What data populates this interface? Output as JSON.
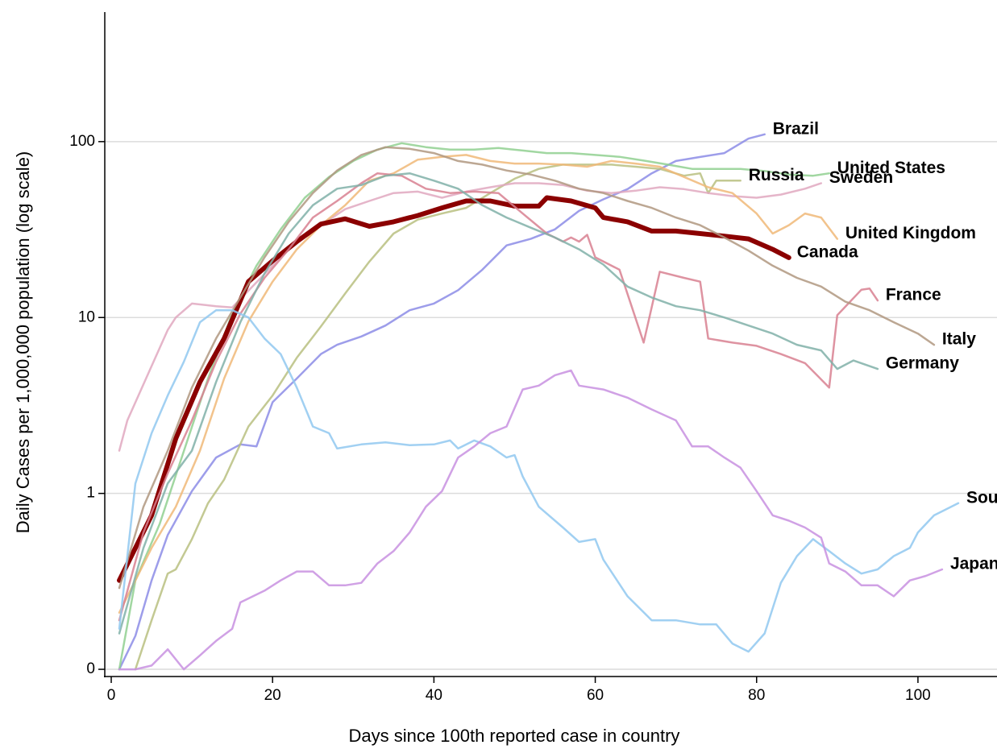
{
  "chart_data": {
    "type": "line",
    "x_label": "Days since 100th reported case in country",
    "y_label": "Daily Cases per 1,000,000 population (log scale)",
    "log_y": true,
    "grid": true,
    "xlim": [
      -0.8,
      109.8
    ],
    "xticks": [
      0,
      20,
      40,
      60,
      80,
      100
    ],
    "ylim": [
      0.091,
      545
    ],
    "yticks": [
      {
        "value": 0.1,
        "label": "0"
      },
      1,
      10,
      100
    ],
    "series": [
      {
        "name": "Brazil",
        "color": "#8c8ce6",
        "line_width": 2.5,
        "x": [
          1,
          3,
          5,
          7,
          10,
          13,
          16,
          18,
          20,
          23,
          26,
          28,
          31,
          34,
          37,
          40,
          43,
          46,
          49,
          52,
          55,
          58,
          61,
          64,
          67,
          70,
          73,
          76,
          79,
          81
        ],
        "values": [
          0.1,
          0.155,
          0.32,
          0.58,
          1.03,
          1.6,
          1.9,
          1.85,
          3.3,
          4.5,
          6.2,
          7.0,
          7.8,
          9,
          11,
          12,
          14.3,
          18.7,
          25.7,
          28,
          31.7,
          40.4,
          47,
          53.7,
          66,
          77.6,
          81.8,
          86,
          104,
          110
        ]
      },
      {
        "name": "United States",
        "color": "#90d090",
        "line_width": 2.5,
        "x": [
          1,
          3,
          6,
          9,
          12,
          15,
          18,
          21,
          24,
          27,
          30,
          33,
          36,
          39,
          42,
          45,
          48,
          51,
          54,
          57,
          60,
          63,
          66,
          69,
          72,
          75,
          78,
          81,
          84,
          87,
          89
        ],
        "values": [
          0.1,
          0.32,
          0.67,
          1.74,
          4.5,
          10.5,
          19.7,
          31.7,
          48,
          63,
          77.6,
          90,
          98,
          93,
          90,
          90,
          92,
          89,
          86,
          86,
          84,
          82,
          78,
          74,
          70,
          70,
          70,
          68,
          65,
          64,
          66
        ]
      },
      {
        "name": "Russia",
        "color": "#b8c080",
        "line_width": 2.5,
        "x": [
          3,
          5,
          7,
          8,
          10,
          12,
          14,
          17,
          20,
          23,
          26,
          29,
          32,
          35,
          38,
          41,
          44,
          47,
          50,
          53,
          56,
          59,
          62,
          65,
          68,
          71,
          73,
          74,
          75,
          78
        ],
        "values": [
          0.1,
          0.19,
          0.35,
          0.37,
          0.55,
          0.88,
          1.2,
          2.4,
          3.6,
          5.9,
          8.9,
          13.7,
          20.8,
          30,
          36,
          39,
          42,
          51,
          61.5,
          70,
          74,
          74,
          74,
          72,
          70,
          64,
          66,
          51,
          60,
          60
        ]
      },
      {
        "name": "Sweden",
        "color": "#e0a8c0",
        "line_width": 2.5,
        "x": [
          1,
          2,
          5,
          7,
          8,
          10,
          13,
          15,
          20,
          23,
          26,
          29,
          32,
          35,
          38,
          41,
          44,
          47,
          50,
          53,
          56,
          59,
          62,
          65,
          68,
          71,
          74,
          77,
          80,
          83,
          86,
          88
        ],
        "values": [
          1.75,
          2.6,
          5.3,
          8.5,
          10,
          12,
          11.6,
          11.4,
          19.7,
          27,
          33.5,
          41.3,
          46,
          51,
          52,
          48,
          52,
          55,
          58,
          58,
          56.6,
          52.6,
          51,
          52.6,
          55,
          53.7,
          51,
          49,
          48,
          50,
          54,
          58
        ]
      },
      {
        "name": "United Kingdom",
        "color": "#f0b878",
        "line_width": 2.5,
        "x": [
          1,
          3,
          5,
          8,
          11,
          14,
          17,
          20,
          23,
          26,
          29,
          32,
          35,
          38,
          41,
          44,
          47,
          50,
          53,
          56,
          59,
          62,
          65,
          68,
          71,
          74,
          77,
          80,
          82,
          84,
          86,
          88,
          90
        ],
        "values": [
          0.21,
          0.32,
          0.49,
          0.84,
          1.75,
          4.5,
          9.5,
          16,
          24.4,
          33.5,
          43.5,
          60,
          66,
          79,
          82,
          84,
          77.6,
          75,
          75,
          74,
          72,
          77.6,
          75,
          72,
          63,
          55,
          51,
          39,
          30,
          33.5,
          39,
          37,
          28
        ]
      },
      {
        "name": "Canada",
        "color": "#8b0000",
        "line_width": 6,
        "x": [
          1,
          5,
          8,
          11,
          14,
          17,
          20,
          23,
          26,
          29,
          32,
          35,
          38,
          41,
          44,
          47,
          50,
          53,
          54,
          57,
          60,
          61,
          64,
          67,
          70,
          73,
          76,
          79,
          82,
          84
        ],
        "values": [
          0.32,
          0.75,
          2.05,
          4.3,
          7.6,
          16,
          21,
          27,
          34,
          36.4,
          33,
          35,
          38,
          42,
          46,
          46,
          43,
          43,
          48,
          46,
          42,
          37,
          35,
          31,
          31,
          30,
          29,
          28,
          24.4,
          21.9
        ]
      },
      {
        "name": "France",
        "color": "#d88090",
        "line_width": 2.5,
        "x": [
          1,
          4,
          7,
          10,
          13,
          16,
          19,
          22,
          25,
          28,
          31,
          33,
          36,
          39,
          42,
          45,
          48,
          51,
          54,
          56,
          57,
          58,
          59,
          60,
          63,
          66,
          68,
          71,
          73,
          74,
          77,
          80,
          83,
          86,
          89,
          90,
          93,
          94,
          95
        ],
        "values": [
          0.19,
          0.6,
          1.3,
          2.6,
          5.6,
          10.5,
          16.8,
          24.4,
          37,
          46,
          58,
          66,
          64,
          54,
          51,
          52,
          51,
          39,
          30,
          27,
          28.5,
          27,
          29.5,
          22,
          18.7,
          7.2,
          18.2,
          16.8,
          16,
          7.6,
          7.2,
          6.9,
          6.2,
          5.5,
          4.0,
          10.3,
          14.4,
          14.6,
          12.5
        ]
      },
      {
        "name": "Italy",
        "color": "#b09880",
        "line_width": 2.5,
        "x": [
          1,
          4,
          7,
          10,
          13,
          16,
          19,
          22,
          25,
          28,
          31,
          34,
          37,
          40,
          43,
          46,
          49,
          52,
          55,
          58,
          61,
          64,
          67,
          70,
          73,
          76,
          79,
          82,
          85,
          88,
          91,
          94,
          97,
          100,
          102
        ],
        "values": [
          0.29,
          0.84,
          1.75,
          4.0,
          7.6,
          13,
          22,
          35,
          51,
          68.5,
          84,
          93,
          91,
          86,
          77.6,
          74,
          68.5,
          65,
          60,
          54,
          51,
          46,
          42,
          37,
          33.5,
          28.5,
          24,
          19.7,
          16.8,
          15,
          12.3,
          11,
          9.4,
          8.1,
          7
        ]
      },
      {
        "name": "Germany",
        "color": "#80b0a8",
        "line_width": 2.5,
        "x": [
          1,
          4,
          7,
          10,
          13,
          16,
          19,
          22,
          25,
          28,
          31,
          34,
          37,
          40,
          43,
          46,
          49,
          52,
          55,
          58,
          61,
          64,
          67,
          70,
          73,
          76,
          79,
          82,
          85,
          88,
          90,
          92,
          95
        ],
        "values": [
          0.16,
          0.49,
          1.14,
          1.75,
          4.3,
          9.4,
          17.8,
          30,
          43.5,
          54,
          56.6,
          64,
          66,
          60,
          54,
          43.5,
          37,
          32.4,
          28.5,
          24.4,
          20,
          15,
          13,
          11.6,
          11,
          10,
          9,
          8.1,
          7,
          6.5,
          5.1,
          5.7,
          5.1
        ]
      },
      {
        "name": "South Korea",
        "color": "#90c8f0",
        "line_width": 2.5,
        "x": [
          1,
          3,
          5,
          7,
          9,
          11,
          13,
          15,
          17,
          19,
          21,
          23,
          25,
          27,
          28,
          31,
          34,
          37,
          40,
          42,
          43,
          45,
          47,
          49,
          50,
          51,
          53,
          56,
          58,
          60,
          61,
          64,
          67,
          70,
          73,
          75,
          77,
          79,
          81,
          83,
          85,
          87,
          89,
          91,
          93,
          95,
          97,
          99,
          100,
          102,
          105
        ],
        "values": [
          0.17,
          1.14,
          2.2,
          3.6,
          5.6,
          9.4,
          11,
          11,
          10,
          7.6,
          6.2,
          4.0,
          2.4,
          2.2,
          1.8,
          1.9,
          1.95,
          1.88,
          1.9,
          2.0,
          1.8,
          2.0,
          1.85,
          1.6,
          1.65,
          1.25,
          0.84,
          0.64,
          0.53,
          0.55,
          0.42,
          0.26,
          0.19,
          0.19,
          0.18,
          0.18,
          0.14,
          0.126,
          0.16,
          0.31,
          0.44,
          0.55,
          0.47,
          0.4,
          0.35,
          0.37,
          0.44,
          0.49,
          0.6,
          0.75,
          0.88
        ]
      },
      {
        "name": "Japan",
        "color": "#c890e0",
        "line_width": 2.5,
        "x": [
          1,
          3,
          5,
          7,
          9,
          11,
          13,
          15,
          16,
          19,
          21,
          23,
          25,
          27,
          29,
          31,
          33,
          35,
          37,
          39,
          41,
          43,
          45,
          47,
          49,
          51,
          53,
          55,
          57,
          58,
          61,
          64,
          67,
          70,
          72,
          74,
          76,
          78,
          80,
          82,
          84,
          86,
          88,
          89,
          91,
          93,
          95,
          97,
          99,
          101,
          103
        ],
        "values": [
          0.1,
          0.1,
          0.105,
          0.13,
          0.1,
          0.12,
          0.145,
          0.17,
          0.24,
          0.28,
          0.32,
          0.36,
          0.36,
          0.3,
          0.3,
          0.31,
          0.4,
          0.47,
          0.6,
          0.84,
          1.03,
          1.6,
          1.85,
          2.2,
          2.4,
          3.9,
          4.1,
          4.7,
          5.0,
          4.1,
          3.9,
          3.5,
          3.0,
          2.6,
          1.85,
          1.85,
          1.6,
          1.4,
          1.03,
          0.75,
          0.7,
          0.64,
          0.56,
          0.4,
          0.36,
          0.3,
          0.3,
          0.26,
          0.32,
          0.34,
          0.37
        ]
      }
    ]
  }
}
